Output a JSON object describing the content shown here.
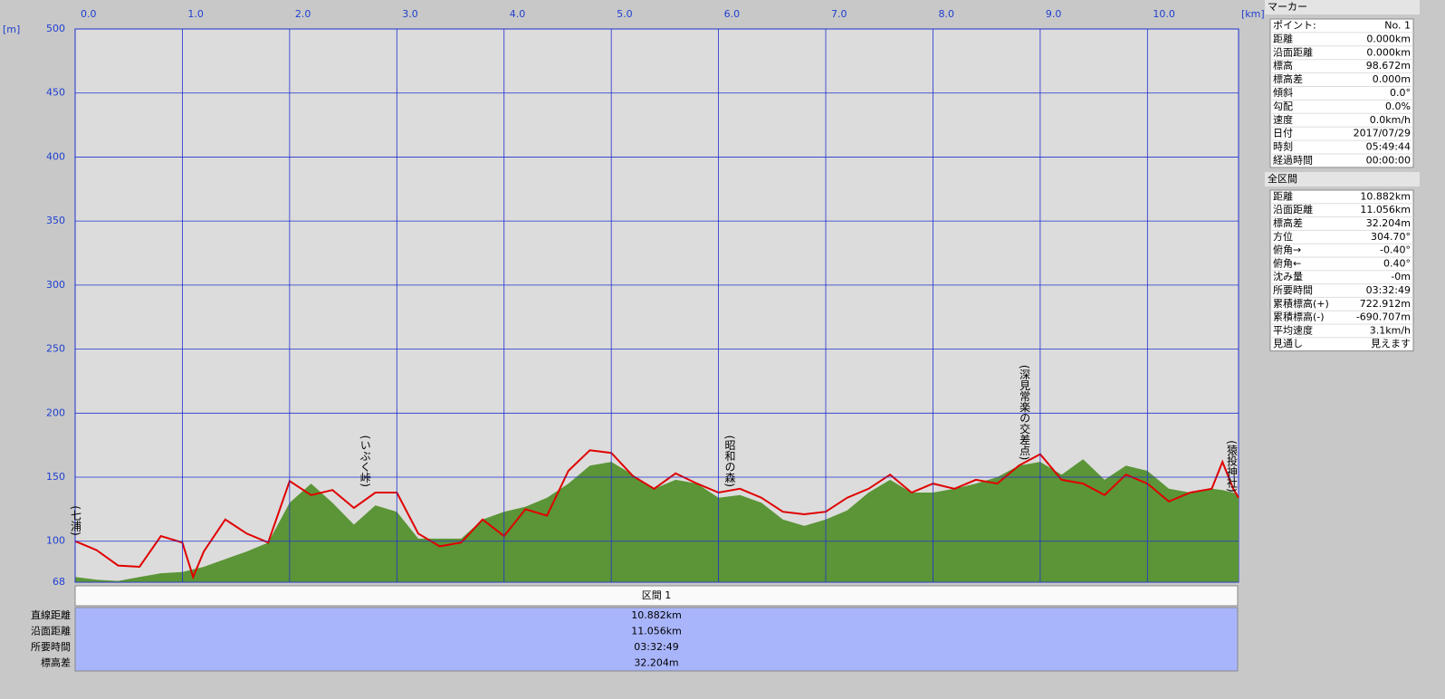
{
  "chart_data": {
    "type": "line",
    "x_unit": "[km]",
    "y_unit": "[m]",
    "xlim": [
      0,
      10.85
    ],
    "ylim": [
      68,
      500
    ],
    "xticks": [
      {
        "value": 0,
        "label": "0.0"
      },
      {
        "value": 1,
        "label": "1.0"
      },
      {
        "value": 2,
        "label": "2.0"
      },
      {
        "value": 3,
        "label": "3.0"
      },
      {
        "value": 4,
        "label": "4.0"
      },
      {
        "value": 5,
        "label": "5.0"
      },
      {
        "value": 6,
        "label": "6.0"
      },
      {
        "value": 7,
        "label": "7.0"
      },
      {
        "value": 8,
        "label": "8.0"
      },
      {
        "value": 9,
        "label": "9.0"
      },
      {
        "value": 10,
        "label": "10.0"
      }
    ],
    "yticks": [
      68,
      100,
      150,
      200,
      250,
      300,
      350,
      400,
      450,
      500
    ],
    "grid": true,
    "x": [
      0,
      0.2,
      0.4,
      0.6,
      0.8,
      1.0,
      1.1,
      1.2,
      1.4,
      1.6,
      1.8,
      2.0,
      2.2,
      2.4,
      2.6,
      2.8,
      3.0,
      3.2,
      3.4,
      3.6,
      3.8,
      4.0,
      4.2,
      4.4,
      4.6,
      4.8,
      5.0,
      5.2,
      5.4,
      5.6,
      5.8,
      6.0,
      6.2,
      6.4,
      6.6,
      6.8,
      7.0,
      7.2,
      7.4,
      7.6,
      7.8,
      8.0,
      8.2,
      8.4,
      8.6,
      8.8,
      9.0,
      9.2,
      9.4,
      9.6,
      9.8,
      10.0,
      10.2,
      10.4,
      10.6,
      10.7,
      10.8,
      10.85
    ],
    "series": [
      {
        "color": "#5b9537",
        "fill": true,
        "values": [
          72,
          70,
          69,
          72,
          75,
          76,
          78,
          80,
          86,
          92,
          99,
          130,
          145,
          130,
          113,
          128,
          123,
          102,
          102,
          102,
          117,
          123,
          127,
          134,
          145,
          159,
          162,
          152,
          141,
          148,
          145,
          134,
          136,
          130,
          117,
          112,
          117,
          124,
          138,
          148,
          138,
          138,
          141,
          145,
          150,
          159,
          162,
          152,
          164,
          148,
          159,
          155,
          141,
          138,
          141,
          140,
          138,
          136
        ]
      },
      {
        "color": "#e00000",
        "fill": false,
        "values": [
          100,
          93,
          81,
          80,
          104,
          99,
          72,
          92,
          117,
          106,
          99,
          147,
          136,
          140,
          126,
          138,
          138,
          106,
          96,
          99,
          117,
          104,
          125,
          120,
          155,
          171,
          169,
          151,
          141,
          153,
          145,
          138,
          141,
          134,
          123,
          121,
          123,
          134,
          141,
          152,
          138,
          145,
          141,
          148,
          145,
          159,
          168,
          148,
          145,
          136,
          152,
          145,
          131,
          138,
          141,
          162,
          141,
          134
        ]
      }
    ],
    "annotations": [
      {
        "text": "(七浦)",
        "x": 0
      },
      {
        "text": "(いぶく峠)",
        "x": 2.7
      },
      {
        "text": "(昭和の森)",
        "x": 6.1
      },
      {
        "text": "(深見常楽の交差点)",
        "x": 8.85
      },
      {
        "text": "(猿投神社)",
        "x": 10.85
      }
    ]
  },
  "marker_panel": {
    "title": "マーカー",
    "rows": [
      [
        "ポイント:",
        "No. 1"
      ],
      [
        "距離",
        "0.000km"
      ],
      [
        "沿面距離",
        "0.000km"
      ],
      [
        "標高",
        "98.672m"
      ],
      [
        "標高差",
        "0.000m"
      ],
      [
        "傾斜",
        "0.0°"
      ],
      [
        "勾配",
        "0.0%"
      ],
      [
        "速度",
        "0.0km/h"
      ],
      [
        "日付",
        "2017/07/29"
      ],
      [
        "時刻",
        "05:49:44"
      ],
      [
        "経過時間",
        "00:00:00"
      ]
    ]
  },
  "section_panel": {
    "title": "全区間",
    "rows": [
      [
        "距離",
        "10.882km"
      ],
      [
        "沿面距離",
        "11.056km"
      ],
      [
        "標高差",
        "32.204m"
      ],
      [
        "方位",
        "304.70°"
      ],
      [
        "俯角→",
        "-0.40°"
      ],
      [
        "俯角←",
        "0.40°"
      ],
      [
        "沈み量",
        "-0m"
      ],
      [
        "所要時間",
        "03:32:49"
      ],
      [
        "累積標高(+)",
        "722.912m"
      ],
      [
        "累積標高(-)",
        "-690.707m"
      ],
      [
        "平均速度",
        "3.1km/h"
      ],
      [
        "見通し",
        "見えます"
      ]
    ]
  },
  "summary_table": {
    "header": "区間 1",
    "rows": [
      [
        "直線距離",
        "10.882km"
      ],
      [
        "沿面距離",
        "11.056km"
      ],
      [
        "所要時間",
        "03:32:49"
      ],
      [
        "標高差",
        "32.204m"
      ]
    ]
  }
}
